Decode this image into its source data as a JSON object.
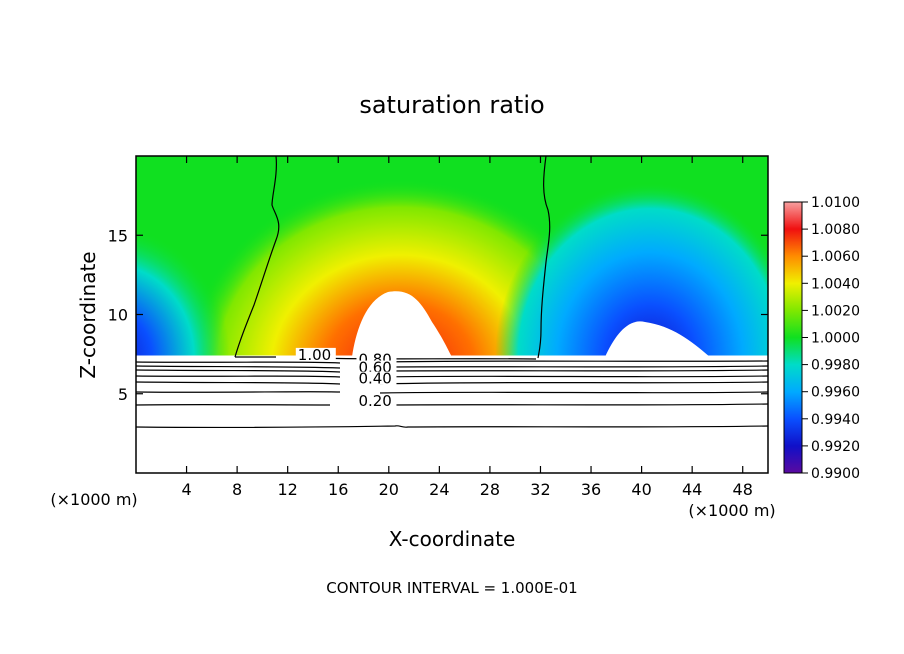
{
  "chart_data": {
    "type": "heatmap",
    "title": "saturation ratio",
    "xlabel": "X-coordinate",
    "ylabel": "Z-coordinate",
    "x_unit": "(×1000 m)",
    "y_unit": "(×1000 m)",
    "footer": "CONTOUR INTERVAL = 1.000E-01",
    "xlim": [
      0,
      50
    ],
    "ylim": [
      0,
      20
    ],
    "x_ticks": [
      4,
      8,
      12,
      16,
      20,
      24,
      28,
      32,
      36,
      40,
      44,
      48
    ],
    "y_ticks": [
      5,
      10,
      15
    ],
    "colorbar": {
      "min": 0.99,
      "max": 1.01,
      "labels": [
        "1.0100",
        "1.0080",
        "1.0060",
        "1.0040",
        "1.0020",
        "1.0000",
        "0.9980",
        "0.9960",
        "0.9940",
        "0.9920",
        "0.9900"
      ]
    },
    "contour_labels": [
      {
        "text": "1.00",
        "x": 12.8,
        "y": 7.2
      },
      {
        "text": "0.80",
        "x": 17.6,
        "y": 6.9
      },
      {
        "text": "0.60",
        "x": 17.6,
        "y": 6.4
      },
      {
        "text": "0.40",
        "x": 17.6,
        "y": 5.7
      },
      {
        "text": "0.20",
        "x": 17.6,
        "y": 4.3
      }
    ]
  }
}
